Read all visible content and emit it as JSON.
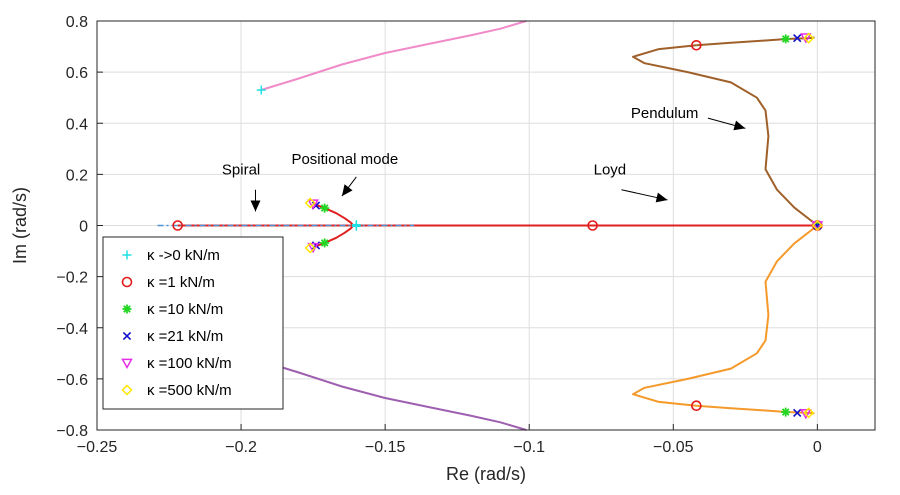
{
  "chart_data": {
    "type": "line",
    "title": "",
    "xlabel": "Re (rad/s)",
    "ylabel": "Im (rad/s)",
    "xlim": [
      -0.25,
      0.02
    ],
    "ylim": [
      -0.8,
      0.8
    ],
    "xticks": [
      -0.25,
      -0.2,
      -0.15,
      -0.1,
      -0.05,
      0
    ],
    "xtick_labels": [
      "−0.25",
      "−0.2",
      "−0.15",
      "−0.1",
      "−0.05",
      "0"
    ],
    "yticks": [
      -0.8,
      -0.6,
      -0.4,
      -0.2,
      0,
      0.2,
      0.4,
      0.6,
      0.8
    ],
    "ytick_labels": [
      "−0.8",
      "−0.6",
      "−0.4",
      "−0.2",
      "0",
      "0.2",
      "0.4",
      "0.6",
      "0.8"
    ],
    "grid": true,
    "legend_position": "bottom-left",
    "series": [
      {
        "color": "#f08ac8",
        "style": "solid",
        "x": [
          -0.193,
          -0.18,
          -0.165,
          -0.15,
          -0.135,
          -0.12,
          -0.11,
          -0.101
        ],
        "y": [
          0.53,
          0.575,
          0.63,
          0.675,
          0.71,
          0.745,
          0.77,
          0.8
        ]
      },
      {
        "color": "#9e5fb0",
        "style": "solid",
        "x": [
          -0.193,
          -0.18,
          -0.165,
          -0.15,
          -0.135,
          -0.12,
          -0.11,
          -0.101
        ],
        "y": [
          -0.53,
          -0.575,
          -0.63,
          -0.675,
          -0.71,
          -0.745,
          -0.77,
          -0.8
        ]
      },
      {
        "color": "#e02020",
        "style": "solid",
        "x": [
          -0.222,
          -0.2,
          -0.18,
          -0.16,
          -0.14,
          -0.12,
          -0.1,
          -0.078,
          -0.06,
          -0.04,
          -0.02,
          0
        ],
        "y": [
          0,
          0,
          0,
          0,
          0,
          0,
          0,
          0,
          0,
          0,
          0,
          0
        ]
      },
      {
        "color": "#e02020",
        "style": "solid",
        "x": [
          -0.175,
          -0.171,
          -0.167,
          -0.164,
          -0.162,
          -0.161
        ],
        "y": [
          0.085,
          0.068,
          0.048,
          0.028,
          0.012,
          0.0
        ]
      },
      {
        "color": "#e02020",
        "style": "solid",
        "x": [
          -0.175,
          -0.171,
          -0.167,
          -0.164,
          -0.162,
          -0.161
        ],
        "y": [
          -0.085,
          -0.068,
          -0.048,
          -0.028,
          -0.012,
          0.0
        ]
      },
      {
        "color": "#a0602a",
        "style": "solid",
        "x": [
          -0.042,
          -0.03,
          -0.02,
          -0.01,
          -0.005,
          -0.003,
          -0.001
        ],
        "y": [
          0.705,
          0.715,
          0.722,
          0.73,
          0.732,
          0.733,
          0.735
        ]
      },
      {
        "color": "#a0602a",
        "style": "solid",
        "x": [
          -0.042,
          -0.055,
          -0.064,
          -0.06,
          -0.045,
          -0.03,
          -0.021,
          -0.018,
          -0.017,
          -0.018,
          -0.014,
          -0.008,
          0
        ],
        "y": [
          0.705,
          0.69,
          0.66,
          0.635,
          0.6,
          0.56,
          0.5,
          0.45,
          0.35,
          0.22,
          0.14,
          0.07,
          0
        ]
      },
      {
        "color": "#f59a2a",
        "style": "solid",
        "x": [
          -0.042,
          -0.03,
          -0.02,
          -0.01,
          -0.005,
          -0.003,
          -0.001
        ],
        "y": [
          -0.705,
          -0.715,
          -0.722,
          -0.73,
          -0.732,
          -0.733,
          -0.735
        ]
      },
      {
        "color": "#f59a2a",
        "style": "solid",
        "x": [
          -0.042,
          -0.055,
          -0.064,
          -0.06,
          -0.045,
          -0.03,
          -0.021,
          -0.018,
          -0.017,
          -0.018,
          -0.014,
          -0.008,
          0
        ],
        "y": [
          -0.705,
          -0.69,
          -0.66,
          -0.635,
          -0.6,
          -0.56,
          -0.5,
          -0.45,
          -0.35,
          -0.22,
          -0.14,
          -0.07,
          0
        ]
      },
      {
        "color": "#4f93d6",
        "style": "dashdot",
        "x": [
          -0.229,
          -0.21,
          -0.19,
          -0.17,
          -0.16,
          -0.15,
          -0.14
        ],
        "y": [
          0,
          0,
          0,
          0,
          0,
          0,
          0
        ]
      }
    ],
    "marker_series": [
      {
        "name": "κ ->0 kN/m",
        "symbol": "plus",
        "color": "#1ee0e6",
        "x": [
          -0.193,
          -0.193,
          -0.16,
          -0.16,
          0
        ],
        "y": [
          0.53,
          -0.53,
          0.003,
          -0.003,
          0
        ]
      },
      {
        "name": "κ =1 kN/m",
        "symbol": "circle",
        "color": "#e31a1a",
        "x": [
          -0.222,
          -0.078,
          -0.042,
          -0.042,
          0
        ],
        "y": [
          0,
          0,
          0.705,
          -0.705,
          0
        ]
      },
      {
        "name": "κ =10 kN/m",
        "symbol": "star",
        "color": "#23d623",
        "x": [
          -0.171,
          -0.171,
          -0.011,
          -0.011,
          0
        ],
        "y": [
          0.068,
          -0.068,
          0.73,
          -0.73,
          0
        ]
      },
      {
        "name": "κ =21 kN/m",
        "symbol": "x",
        "color": "#1010cc",
        "x": [
          -0.174,
          -0.174,
          -0.007,
          -0.007,
          0
        ],
        "y": [
          0.078,
          -0.078,
          0.733,
          -0.733,
          0
        ]
      },
      {
        "name": "κ =100 kN/m",
        "symbol": "triangle-down",
        "color": "#e62ee6",
        "x": [
          -0.175,
          -0.175,
          -0.004,
          -0.004,
          0
        ],
        "y": [
          0.085,
          -0.085,
          0.735,
          -0.735,
          0
        ]
      },
      {
        "name": "κ =500 kN/m",
        "symbol": "diamond",
        "color": "#ffe600",
        "x": [
          -0.176,
          -0.176,
          -0.003,
          -0.003,
          0
        ],
        "y": [
          0.088,
          -0.088,
          0.733,
          -0.733,
          0
        ]
      }
    ],
    "annotations": [
      {
        "text": "Spiral",
        "text_x": -0.2,
        "text_y": 0.2,
        "arrow_from": [
          -0.195,
          0.14
        ],
        "arrow_to": [
          -0.195,
          0.055
        ]
      },
      {
        "text": "Positional mode",
        "text_x": -0.164,
        "text_y": 0.24,
        "arrow_from": [
          -0.16,
          0.19
        ],
        "arrow_to": [
          -0.165,
          0.115
        ]
      },
      {
        "text": "Loyd",
        "text_x": -0.072,
        "text_y": 0.2,
        "arrow_from": [
          -0.068,
          0.14
        ],
        "arrow_to": [
          -0.052,
          0.1
        ]
      },
      {
        "text": "Pendulum",
        "text_x": -0.053,
        "text_y": 0.42,
        "arrow_from": [
          -0.038,
          0.42
        ],
        "arrow_to": [
          -0.025,
          0.38
        ]
      }
    ]
  }
}
